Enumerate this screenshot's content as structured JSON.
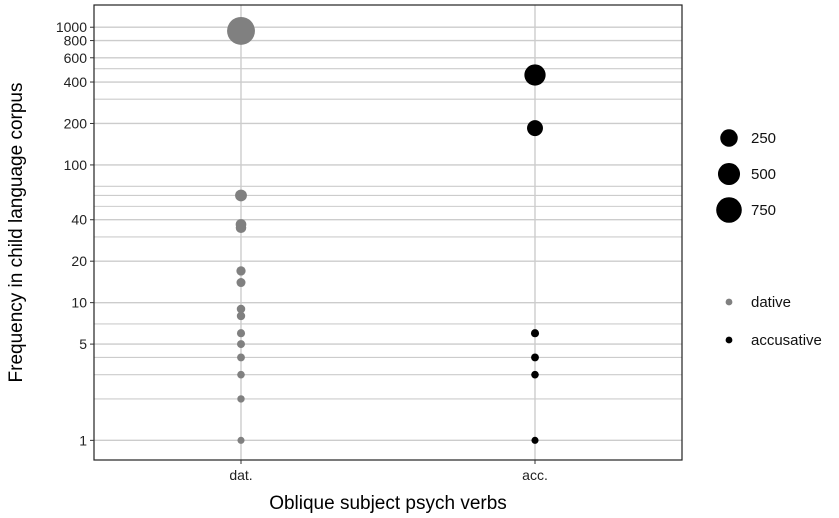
{
  "chart_data": {
    "type": "scatter",
    "title": "",
    "xlabel": "Oblique subject psych verbs",
    "ylabel": "Frequency in child language corpus",
    "y_scale": "log10",
    "ylim": [
      0.72,
      1450
    ],
    "categories": [
      "dat.",
      "acc."
    ],
    "y_ticks": [
      {
        "value": 1,
        "label": "1"
      },
      {
        "value": 5,
        "label": "5"
      },
      {
        "value": 10,
        "label": "10"
      },
      {
        "value": 20,
        "label": "20"
      },
      {
        "value": 40,
        "label": "40"
      },
      {
        "value": 100,
        "label": "100"
      },
      {
        "value": 200,
        "label": "200"
      },
      {
        "value": 400,
        "label": "400"
      },
      {
        "value": 600,
        "label": "600"
      },
      {
        "value": 800,
        "label": "800"
      },
      {
        "value": 1000,
        "label": "1000"
      }
    ],
    "minor_gridlines": [
      2,
      3,
      4,
      7,
      30,
      50,
      60,
      70,
      300,
      500
    ],
    "grid": true,
    "series": [
      {
        "name": "dative",
        "category": "dat.",
        "color": "#808080",
        "values": [
          940,
          60,
          37,
          35,
          17,
          14,
          9,
          8,
          6,
          5,
          4,
          3,
          2,
          1
        ]
      },
      {
        "name": "accusative",
        "category": "acc.",
        "color": "#000000",
        "values": [
          450,
          185,
          6,
          4,
          3,
          1
        ]
      }
    ],
    "size_legend": {
      "breaks": [
        {
          "value": 250,
          "label": "250"
        },
        {
          "value": 500,
          "label": "500"
        },
        {
          "value": 750,
          "label": "750"
        }
      ]
    },
    "color_legend": {
      "items": [
        {
          "label": "dative",
          "color": "#808080"
        },
        {
          "label": "accusative",
          "color": "#000000"
        }
      ]
    },
    "legend_position": "right"
  }
}
